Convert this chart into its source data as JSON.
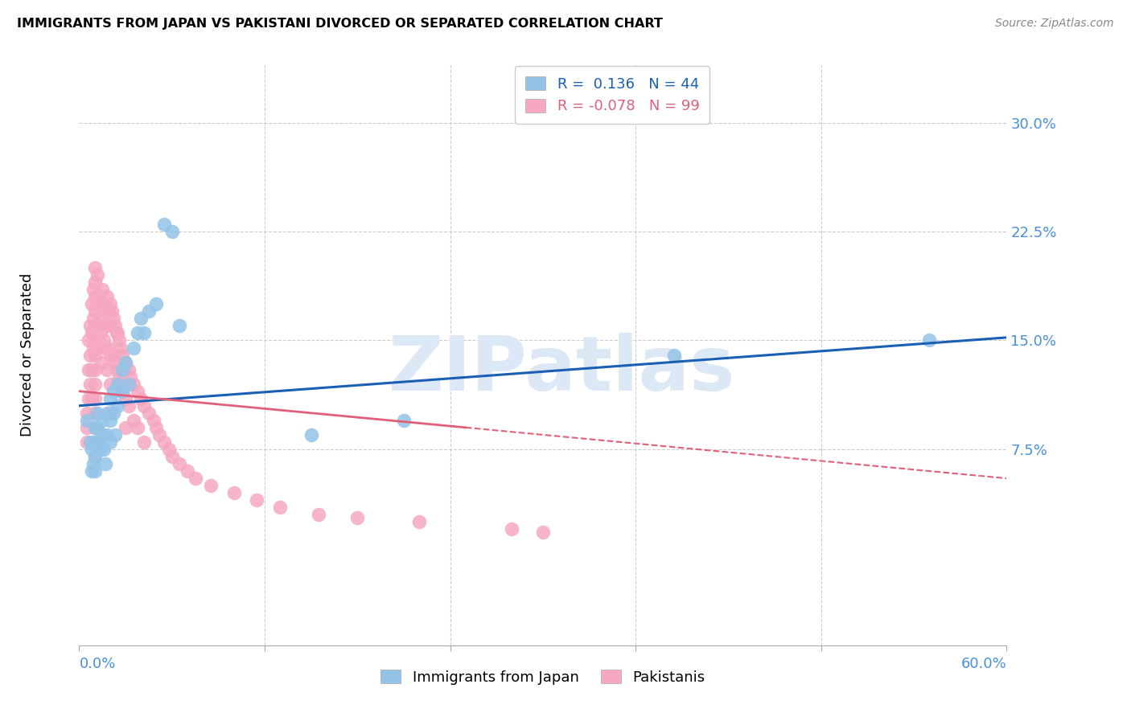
{
  "title": "IMMIGRANTS FROM JAPAN VS PAKISTANI DIVORCED OR SEPARATED CORRELATION CHART",
  "source": "Source: ZipAtlas.com",
  "ylabel": "Divorced or Separated",
  "yticks": [
    0.0,
    0.075,
    0.15,
    0.225,
    0.3
  ],
  "ytick_labels": [
    "",
    "7.5%",
    "15.0%",
    "22.5%",
    "30.0%"
  ],
  "xlim": [
    0.0,
    0.6
  ],
  "ylim": [
    -0.06,
    0.34
  ],
  "legend_label_japan": "Immigrants from Japan",
  "legend_label_pak": "Pakistanis",
  "japan_color": "#93c4e8",
  "pak_color": "#f5a8bf",
  "trend_japan_color": "#1a5fb4",
  "trend_pak_color": "#e0607a",
  "watermark": "ZIPatlas",
  "watermark_color": "#dce8f5",
  "r_japan": 0.136,
  "n_japan": 44,
  "r_pak": -0.078,
  "n_pak": 99,
  "japan_trend_x0": 0.0,
  "japan_trend_y0": 0.105,
  "japan_trend_x1": 0.6,
  "japan_trend_y1": 0.152,
  "pak_trend_x0": 0.0,
  "pak_trend_y0": 0.115,
  "pak_trend_x1": 0.3,
  "pak_trend_y1": 0.085,
  "japan_x": [
    0.005,
    0.007,
    0.008,
    0.008,
    0.009,
    0.01,
    0.01,
    0.01,
    0.01,
    0.012,
    0.012,
    0.013,
    0.014,
    0.015,
    0.015,
    0.016,
    0.017,
    0.018,
    0.018,
    0.02,
    0.02,
    0.02,
    0.022,
    0.022,
    0.023,
    0.025,
    0.025,
    0.028,
    0.028,
    0.03,
    0.032,
    0.035,
    0.038,
    0.04,
    0.042,
    0.045,
    0.05,
    0.055,
    0.06,
    0.065,
    0.15,
    0.21,
    0.385,
    0.55
  ],
  "japan_y": [
    0.095,
    0.08,
    0.075,
    0.06,
    0.065,
    0.09,
    0.08,
    0.07,
    0.06,
    0.1,
    0.09,
    0.08,
    0.075,
    0.095,
    0.085,
    0.075,
    0.065,
    0.1,
    0.085,
    0.11,
    0.095,
    0.08,
    0.115,
    0.1,
    0.085,
    0.12,
    0.105,
    0.13,
    0.115,
    0.135,
    0.12,
    0.145,
    0.155,
    0.165,
    0.155,
    0.17,
    0.175,
    0.23,
    0.225,
    0.16,
    0.085,
    0.095,
    0.14,
    0.15
  ],
  "pak_x": [
    0.005,
    0.005,
    0.005,
    0.006,
    0.006,
    0.006,
    0.007,
    0.007,
    0.007,
    0.008,
    0.008,
    0.008,
    0.008,
    0.009,
    0.009,
    0.009,
    0.01,
    0.01,
    0.01,
    0.01,
    0.01,
    0.01,
    0.01,
    0.01,
    0.01,
    0.01,
    0.01,
    0.01,
    0.01,
    0.01,
    0.012,
    0.012,
    0.012,
    0.013,
    0.013,
    0.014,
    0.014,
    0.015,
    0.015,
    0.015,
    0.016,
    0.016,
    0.017,
    0.017,
    0.018,
    0.018,
    0.018,
    0.019,
    0.019,
    0.02,
    0.02,
    0.02,
    0.02,
    0.02,
    0.021,
    0.022,
    0.022,
    0.023,
    0.023,
    0.024,
    0.025,
    0.025,
    0.026,
    0.026,
    0.027,
    0.027,
    0.028,
    0.028,
    0.03,
    0.03,
    0.03,
    0.032,
    0.032,
    0.033,
    0.035,
    0.035,
    0.038,
    0.038,
    0.04,
    0.042,
    0.042,
    0.045,
    0.048,
    0.05,
    0.052,
    0.055,
    0.058,
    0.06,
    0.065,
    0.07,
    0.075,
    0.085,
    0.1,
    0.115,
    0.13,
    0.155,
    0.18,
    0.22,
    0.28,
    0.3
  ],
  "pak_y": [
    0.1,
    0.09,
    0.08,
    0.15,
    0.13,
    0.11,
    0.16,
    0.14,
    0.12,
    0.175,
    0.155,
    0.13,
    0.11,
    0.185,
    0.165,
    0.145,
    0.2,
    0.19,
    0.18,
    0.17,
    0.16,
    0.15,
    0.14,
    0.13,
    0.12,
    0.11,
    0.1,
    0.09,
    0.08,
    0.07,
    0.195,
    0.175,
    0.145,
    0.18,
    0.16,
    0.175,
    0.155,
    0.185,
    0.165,
    0.135,
    0.175,
    0.15,
    0.17,
    0.145,
    0.18,
    0.16,
    0.13,
    0.17,
    0.145,
    0.175,
    0.16,
    0.14,
    0.12,
    0.1,
    0.17,
    0.165,
    0.14,
    0.16,
    0.135,
    0.155,
    0.155,
    0.13,
    0.15,
    0.125,
    0.145,
    0.12,
    0.14,
    0.115,
    0.135,
    0.11,
    0.09,
    0.13,
    0.105,
    0.125,
    0.12,
    0.095,
    0.115,
    0.09,
    0.11,
    0.105,
    0.08,
    0.1,
    0.095,
    0.09,
    0.085,
    0.08,
    0.075,
    0.07,
    0.065,
    0.06,
    0.055,
    0.05,
    0.045,
    0.04,
    0.035,
    0.03,
    0.028,
    0.025,
    0.02,
    0.018
  ]
}
